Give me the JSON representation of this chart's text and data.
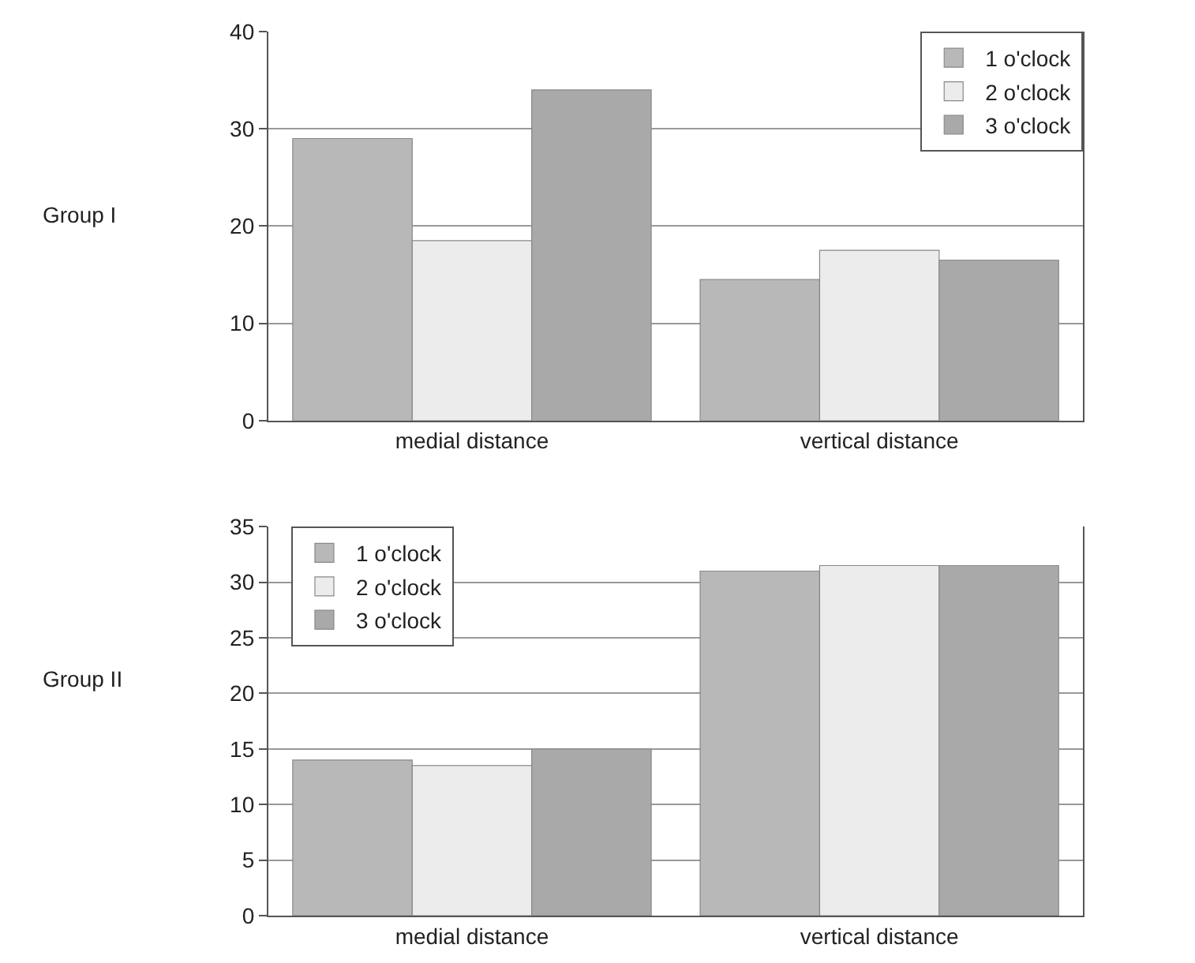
{
  "chart_data": [
    {
      "type": "bar",
      "ylabel": "Group I",
      "categories": [
        "medial distance",
        "vertical distance"
      ],
      "series": [
        {
          "name": "1 o'clock",
          "color": "#b8b8b8",
          "values": [
            29,
            14.5
          ]
        },
        {
          "name": "2 o'clock",
          "color": "#ececec",
          "values": [
            18.5,
            17.5
          ]
        },
        {
          "name": "3 o'clock",
          "color": "#a9a9a9",
          "values": [
            34,
            16.5
          ]
        }
      ],
      "ylim": [
        0,
        40
      ],
      "yticks": [
        0,
        10,
        20,
        30,
        40
      ],
      "grid": "y",
      "legend": "top right"
    },
    {
      "type": "bar",
      "ylabel": "Group II",
      "categories": [
        "medial distance",
        "vertical distance"
      ],
      "series": [
        {
          "name": "1 o'clock",
          "color": "#b8b8b8",
          "values": [
            14,
            31
          ]
        },
        {
          "name": "2 o'clock",
          "color": "#ececec",
          "values": [
            13.5,
            31.5
          ]
        },
        {
          "name": "3 o'clock",
          "color": "#a9a9a9",
          "values": [
            15,
            31.5
          ]
        }
      ],
      "ylim": [
        0,
        35
      ],
      "yticks": [
        0,
        5,
        10,
        15,
        20,
        25,
        30,
        35
      ],
      "grid": "y",
      "legend": "top left"
    }
  ]
}
